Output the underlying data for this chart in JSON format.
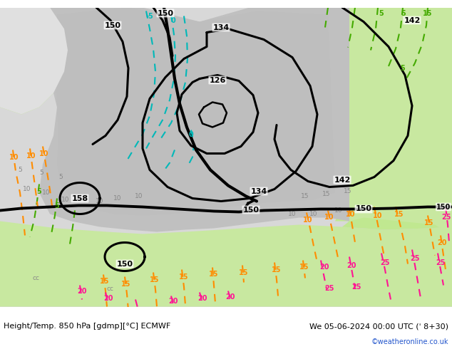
{
  "title_left": "Height/Temp. 850 hPa [gdmp][°C] ECMWF",
  "title_right": "We 05-06-2024 00:00 UTC (ˈ 8+30)",
  "credit": "©weatheronline.co.uk",
  "fig_width": 6.34,
  "fig_height": 4.9,
  "dpi": 100,
  "bg_gray": "#c8c8c8",
  "bg_green_light": "#c8e8a0",
  "bg_white": "#f0f0f0",
  "color_black": "#000000",
  "color_cyan": "#00b8b8",
  "color_orange": "#ff8c00",
  "color_pink": "#ff1493",
  "color_green_line": "#44aa00",
  "color_gray_label": "#888888"
}
